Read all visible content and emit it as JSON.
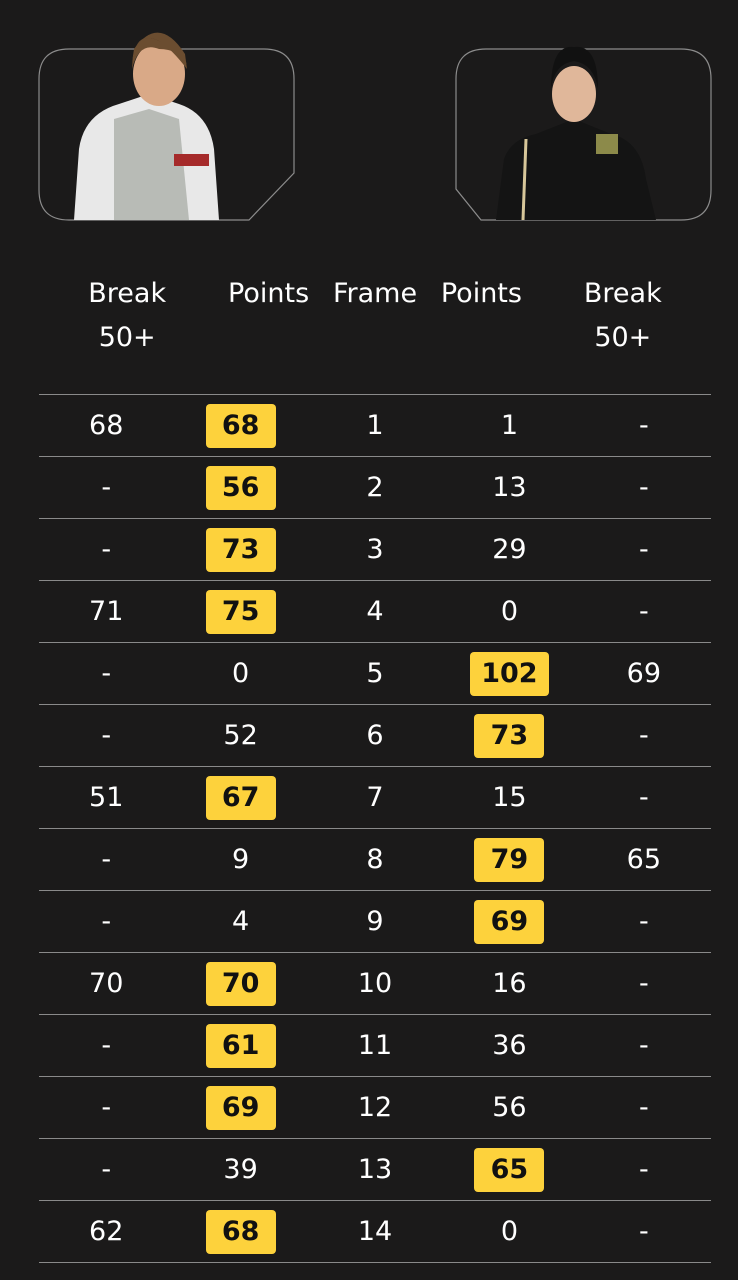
{
  "players": [
    {
      "side": "left",
      "photo": "player-left-photo"
    },
    {
      "side": "right",
      "photo": "player-right-photo"
    }
  ],
  "headers": [
    "Break 50+",
    "Points",
    "Frame",
    "Points",
    "Break 50+"
  ],
  "highlight_color": "#fdd23c",
  "rows": [
    {
      "b1": "68",
      "p1": "68",
      "f": "1",
      "p2": "1",
      "b2": "-",
      "w": 1
    },
    {
      "b1": "-",
      "p1": "56",
      "f": "2",
      "p2": "13",
      "b2": "-",
      "w": 1
    },
    {
      "b1": "-",
      "p1": "73",
      "f": "3",
      "p2": "29",
      "b2": "-",
      "w": 1
    },
    {
      "b1": "71",
      "p1": "75",
      "f": "4",
      "p2": "0",
      "b2": "-",
      "w": 1
    },
    {
      "b1": "-",
      "p1": "0",
      "f": "5",
      "p2": "102",
      "b2": "69",
      "w": 2
    },
    {
      "b1": "-",
      "p1": "52",
      "f": "6",
      "p2": "73",
      "b2": "-",
      "w": 2
    },
    {
      "b1": "51",
      "p1": "67",
      "f": "7",
      "p2": "15",
      "b2": "-",
      "w": 1
    },
    {
      "b1": "-",
      "p1": "9",
      "f": "8",
      "p2": "79",
      "b2": "65",
      "w": 2
    },
    {
      "b1": "-",
      "p1": "4",
      "f": "9",
      "p2": "69",
      "b2": "-",
      "w": 2
    },
    {
      "b1": "70",
      "p1": "70",
      "f": "10",
      "p2": "16",
      "b2": "-",
      "w": 1
    },
    {
      "b1": "-",
      "p1": "61",
      "f": "11",
      "p2": "36",
      "b2": "-",
      "w": 1
    },
    {
      "b1": "-",
      "p1": "69",
      "f": "12",
      "p2": "56",
      "b2": "-",
      "w": 1
    },
    {
      "b1": "-",
      "p1": "39",
      "f": "13",
      "p2": "65",
      "b2": "-",
      "w": 2
    },
    {
      "b1": "62",
      "p1": "68",
      "f": "14",
      "p2": "0",
      "b2": "-",
      "w": 1
    }
  ]
}
